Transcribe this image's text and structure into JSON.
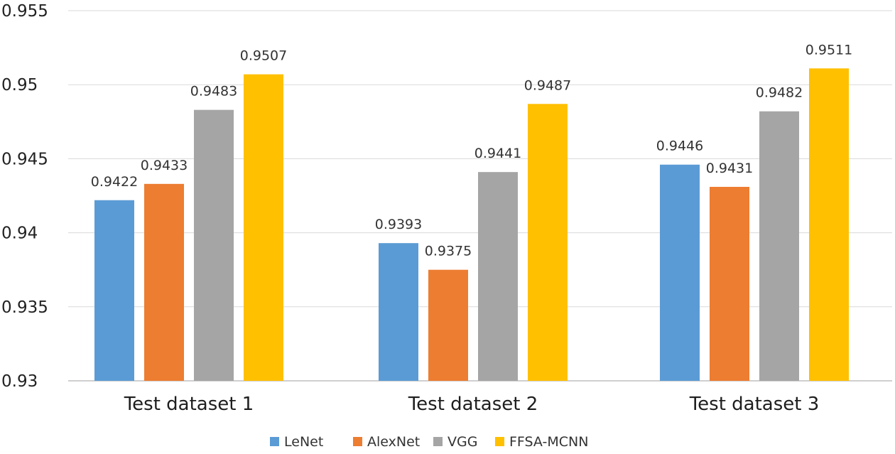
{
  "chart_data": {
    "type": "bar",
    "title": "",
    "xlabel": "",
    "ylabel": "",
    "categories": [
      "Test dataset 1",
      "Test dataset 2",
      "Test dataset 3"
    ],
    "series": [
      {
        "name": "LeNet",
        "color": "#5b9bd5",
        "values": [
          0.9422,
          0.9393,
          0.9446
        ],
        "labels": [
          "0.9422",
          "0.9393",
          "0.9446"
        ]
      },
      {
        "name": "AlexNet",
        "color": "#ed7d31",
        "values": [
          0.9433,
          0.9375,
          0.9431
        ],
        "labels": [
          "0.9433",
          "0.9375",
          "0.9431"
        ]
      },
      {
        "name": "VGG",
        "color": "#a5a5a5",
        "values": [
          0.9483,
          0.9441,
          0.9482
        ],
        "labels": [
          "0.9483",
          "0.9441",
          "0.9482"
        ]
      },
      {
        "name": "FFSA-MCNN",
        "color": "#ffc000",
        "values": [
          0.9507,
          0.9487,
          0.9511
        ],
        "labels": [
          "0.9507",
          "0.9487",
          "0.9511"
        ]
      }
    ],
    "ylim": [
      0.93,
      0.955
    ],
    "yticks": [
      0.93,
      0.935,
      0.94,
      0.945,
      0.95,
      0.955
    ],
    "ytick_labels": [
      "0.93",
      "0.935",
      "0.94",
      "0.945",
      "0.95",
      "0.955"
    ],
    "grid": true,
    "legend_position": "bottom"
  }
}
